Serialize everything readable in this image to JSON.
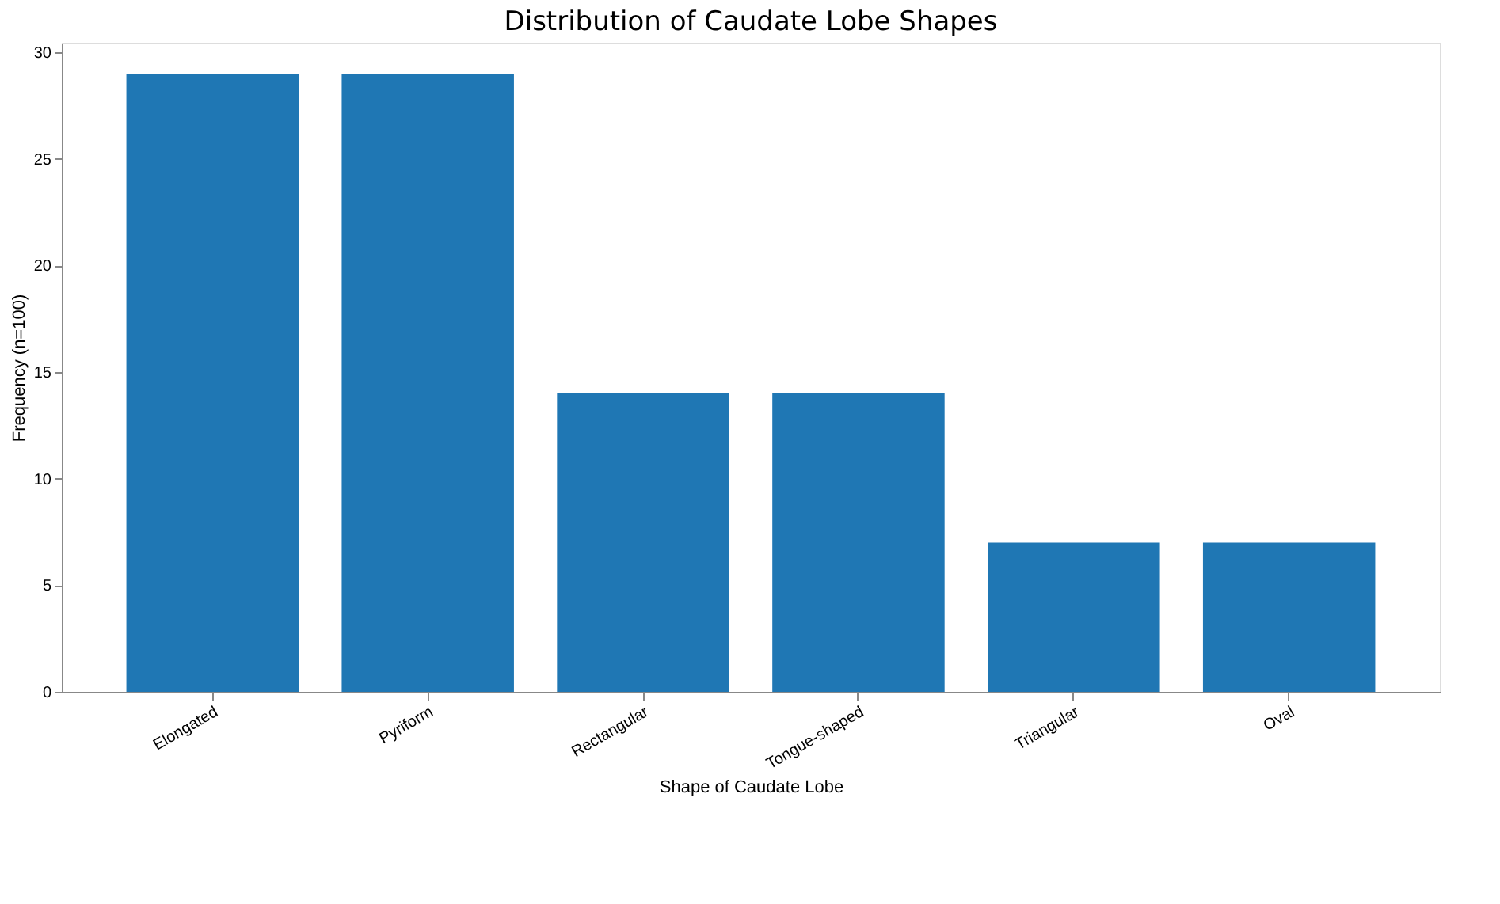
{
  "chart_data": {
    "type": "bar",
    "title": "Distribution of Caudate Lobe Shapes",
    "xlabel": "Shape of Caudate Lobe",
    "ylabel": "Frequency (n=100)",
    "categories": [
      "Elongated",
      "Pyriform",
      "Rectangular",
      "Tongue-shaped",
      "Triangular",
      "Oval"
    ],
    "values": [
      29,
      29,
      14,
      14,
      7,
      7
    ],
    "color": "#1f77b4",
    "ylim": [
      0,
      30.45
    ],
    "yticks": [
      0,
      5,
      10,
      15,
      20,
      25,
      30
    ],
    "grid": false
  }
}
